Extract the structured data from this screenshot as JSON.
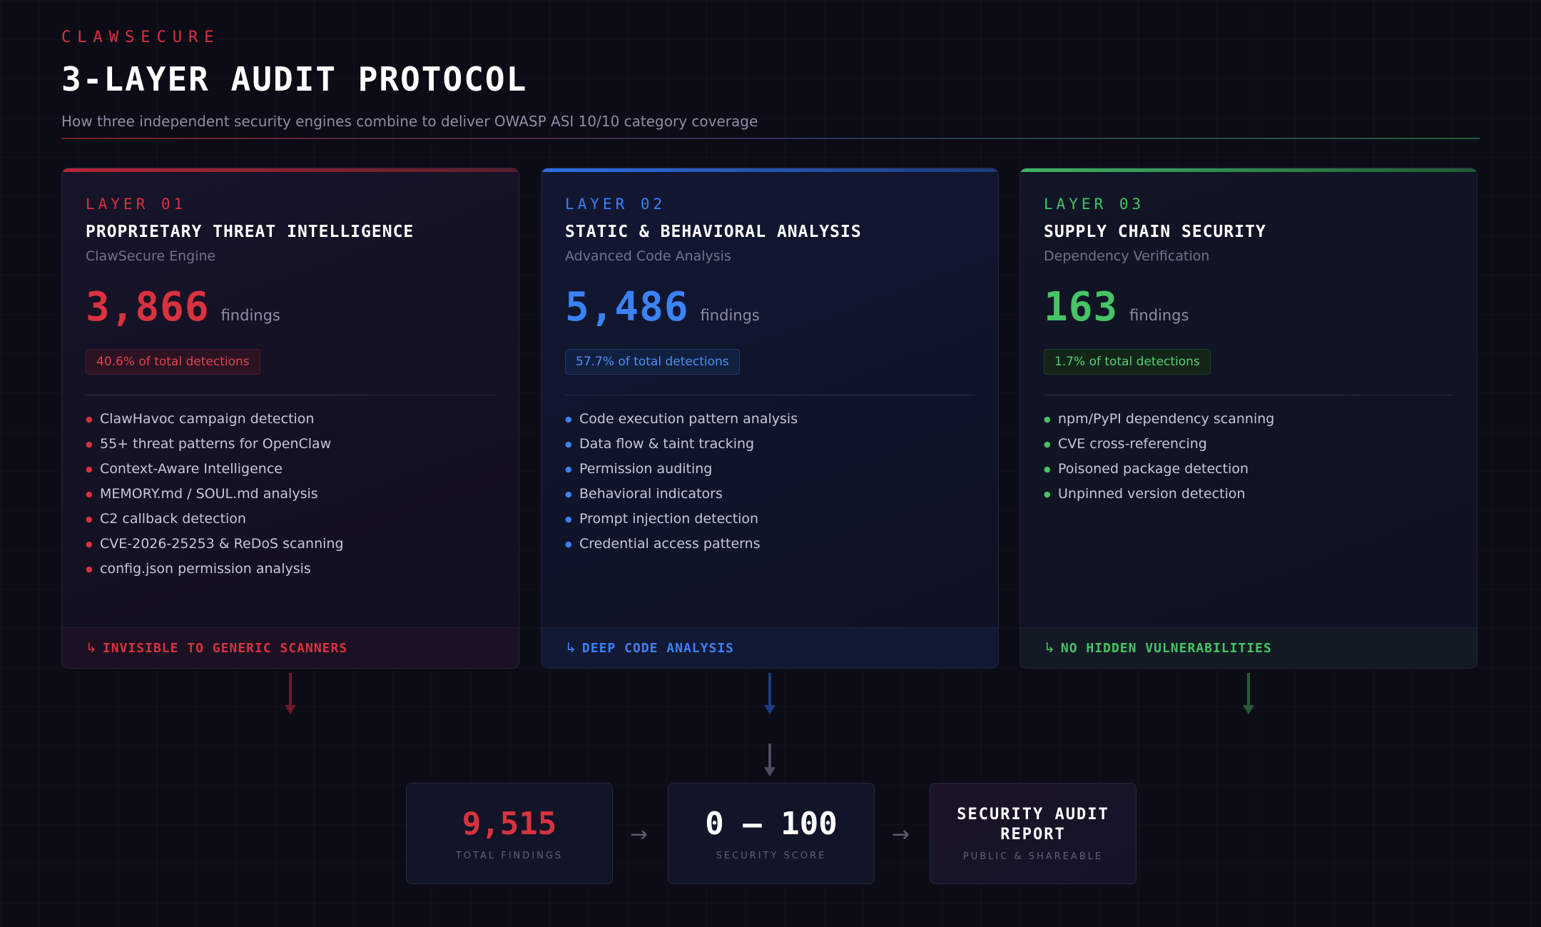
{
  "header": {
    "brand": "CLAWSECURE",
    "title": "3-LAYER AUDIT PROTOCOL",
    "subtitle": "How three independent security engines combine to deliver OWASP ASI 10/10 category coverage"
  },
  "colors": {
    "red": "#d9323f",
    "blue": "#3b82f6",
    "green": "#46c466",
    "background": "#0c0c16"
  },
  "layers": [
    {
      "label": "LAYER 01",
      "title": "PROPRIETARY THREAT INTELLIGENCE",
      "engine": "ClawSecure Engine",
      "findings": "3,866",
      "findings_unit": "findings",
      "share": "40.6% of total detections",
      "features": [
        "ClawHavoc campaign detection",
        "55+ threat patterns for OpenClaw",
        "Context-Aware Intelligence",
        "MEMORY.md / SOUL.md analysis",
        "C2 callback detection",
        "CVE-2026-25253 & ReDoS scanning",
        "config.json permission analysis"
      ],
      "footer_icon": "return-arrow-icon",
      "footer": "INVISIBLE TO GENERIC SCANNERS"
    },
    {
      "label": "LAYER 02",
      "title": "STATIC & BEHAVIORAL ANALYSIS",
      "engine": "Advanced Code Analysis",
      "findings": "5,486",
      "findings_unit": "findings",
      "share": "57.7% of total detections",
      "features": [
        "Code execution pattern analysis",
        "Data flow & taint tracking",
        "Permission auditing",
        "Behavioral indicators",
        "Prompt injection detection",
        "Credential access patterns"
      ],
      "footer_icon": "return-arrow-icon",
      "footer": "DEEP CODE ANALYSIS"
    },
    {
      "label": "LAYER 03",
      "title": "SUPPLY CHAIN SECURITY",
      "engine": "Dependency Verification",
      "findings": "163",
      "findings_unit": "findings",
      "share": "1.7% of total detections",
      "features": [
        "npm/PyPI dependency scanning",
        "CVE cross-referencing",
        "Poisoned package detection",
        "Unpinned version detection"
      ],
      "footer_icon": "return-arrow-icon",
      "footer": "NO HIDDEN VULNERABILITIES"
    }
  ],
  "results": {
    "total": {
      "value": "9,515",
      "caption": "TOTAL FINDINGS"
    },
    "score": {
      "value": "0 – 100",
      "caption": "SECURITY SCORE"
    },
    "report": {
      "title": "SECURITY AUDIT REPORT",
      "caption": "PUBLIC & SHAREABLE"
    },
    "arrow": "→"
  }
}
